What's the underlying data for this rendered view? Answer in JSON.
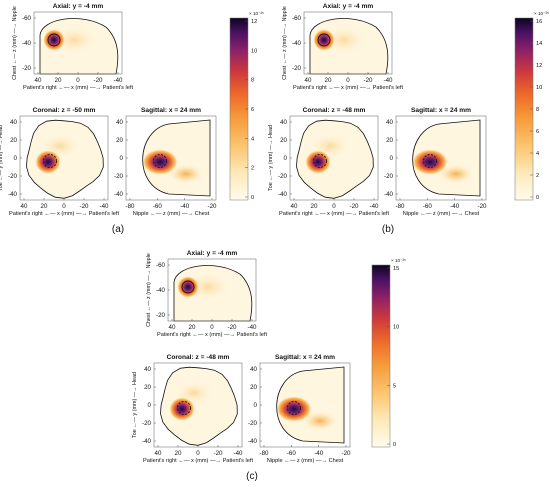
{
  "figure": {
    "panels": [
      {
        "id": "a",
        "label": "(a)",
        "colorbar": {
          "max": 12,
          "ticks": [
            0,
            2,
            4,
            6,
            8,
            10,
            12
          ],
          "exponent": "× 10⁻²⁵"
        },
        "axial": {
          "title": "Axial: y = -4 mm",
          "yticks": [
            "-60",
            "-40",
            "-20"
          ],
          "xticks": [
            "40",
            "20",
            "0",
            "-20",
            "-40"
          ],
          "ylabel": "Chest ←— z (mm) —→ Nipple",
          "xlabel": "Patient's right ←— x (mm) —→ Patient's left"
        },
        "coronal": {
          "title": "Coronal: z = -50 mm",
          "yticks": [
            "40",
            "20",
            "0",
            "-20",
            "-40"
          ],
          "xticks": [
            "40",
            "20",
            "0",
            "-20",
            "-40"
          ],
          "ylabel": "Toe ←— y (mm) —→ Head",
          "xlabel": "Patient's right ←— x (mm) —→ Patient's left"
        },
        "sagittal": {
          "title": "Sagittal: x = 24 mm",
          "yticks": [
            "40",
            "20",
            "0",
            "-20",
            "-40"
          ],
          "xticks": [
            "-80",
            "-60",
            "-40",
            "-20"
          ],
          "xlabel": "Nipple ←— z (mm) —→ Chest"
        }
      },
      {
        "id": "b",
        "label": "(b)",
        "colorbar": {
          "max": 16,
          "ticks": [
            0,
            2,
            4,
            6,
            8,
            10,
            12,
            14,
            16
          ],
          "exponent": "× 10⁻²⁵"
        },
        "axial": {
          "title": "Axial: y = -4 mm",
          "yticks": [
            "-60",
            "-40",
            "-20"
          ],
          "xticks": [
            "40",
            "20",
            "0",
            "-20",
            "-40"
          ],
          "ylabel": "Chest ←— z (mm) —→ Nipple",
          "xlabel": "Patient's right ←— x (mm) —→ Patient's left"
        },
        "coronal": {
          "title": "Coronal: z = -48 mm",
          "yticks": [
            "40",
            "20",
            "0",
            "-20",
            "-40"
          ],
          "xticks": [
            "40",
            "20",
            "0",
            "-20",
            "-40"
          ],
          "ylabel": "Toe ←— y (mm) —→ Head",
          "xlabel": "Patient's right ←— x (mm) —→ Patient's left"
        },
        "sagittal": {
          "title": "Sagittal: x = 24 mm",
          "yticks": [
            "40",
            "20",
            "0",
            "-20",
            "-40"
          ],
          "xticks": [
            "-80",
            "-60",
            "-40",
            "-20"
          ],
          "xlabel": "Nipple ←— z (mm) —→ Chest"
        }
      },
      {
        "id": "c",
        "label": "(c)",
        "colorbar": {
          "max": 15,
          "ticks": [
            0,
            5,
            10,
            15
          ],
          "exponent": "× 10⁻²⁵"
        },
        "axial": {
          "title": "Axial: y = -4 mm",
          "yticks": [
            "-60",
            "-40",
            "-20"
          ],
          "xticks": [
            "40",
            "20",
            "0",
            "-20",
            "-40"
          ],
          "ylabel": "Chest ←— z (mm) —→ Nipple",
          "xlabel": "Patient's right ←— x (mm) —→ Patient's left"
        },
        "coronal": {
          "title": "Coronal: z = -48 mm",
          "yticks": [
            "40",
            "20",
            "0",
            "-20",
            "-40"
          ],
          "xticks": [
            "40",
            "20",
            "0",
            "-20",
            "-40"
          ],
          "ylabel": "Toe ←— y (mm) —→ Head",
          "xlabel": "Patient's right ←— x (mm) —→ Patient's left"
        },
        "sagittal": {
          "title": "Sagittal: x = 24 mm",
          "yticks": [
            "40",
            "20",
            "0",
            "-20",
            "-40"
          ],
          "xticks": [
            "-80",
            "-60",
            "-40",
            "-20"
          ],
          "xlabel": "Nipple ←— z (mm) —→ Chest"
        }
      }
    ]
  }
}
